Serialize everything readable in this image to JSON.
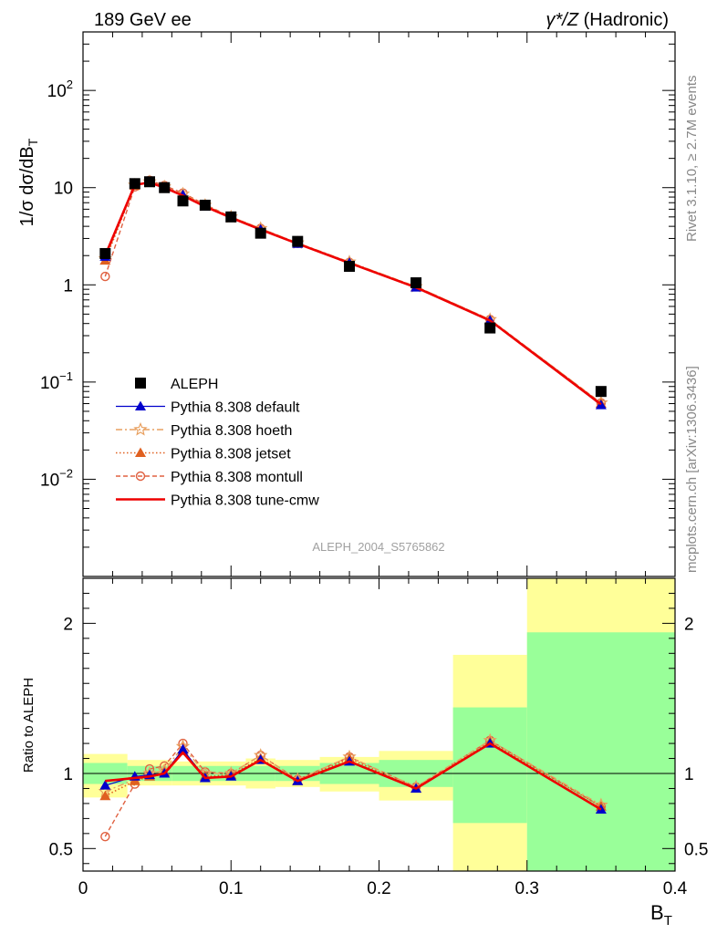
{
  "header": {
    "left": "189 GeV ee",
    "right_main": "γ*/Z",
    "right_paren": "(Hadronic)"
  },
  "side_labels": {
    "rivet": "Rivet 3.1.10, ≥ 2.7M events",
    "mcplots": "mcplots.cern.ch [arXiv:1306.3436]"
  },
  "watermark": "ALEPH_2004_S5765862",
  "colors": {
    "data": "#000000",
    "default": "#0000cc",
    "hoeth": "#e8a060",
    "jetset": "#e06020",
    "montull": "#e06040",
    "tunecmw": "#ee0000",
    "band_inner": "#99ff99",
    "band_outer": "#ffff99"
  },
  "chart_data": [
    {
      "type": "scatter",
      "panel": "main",
      "title": "",
      "xlabel": "B_T",
      "ylabel": "1/σ dσ/dB_T",
      "ylabel_parts": {
        "prefix": "1/σ  dσ/dB",
        "sub": "T"
      },
      "xlim": [
        0,
        0.4
      ],
      "ylim": [
        0.001,
        400
      ],
      "yscale": "log",
      "ytick_labels": [
        {
          "value": 0.01,
          "base": "10",
          "exp": "−2"
        },
        {
          "value": 0.1,
          "base": "10",
          "exp": "−1"
        },
        {
          "value": 1,
          "base": "1",
          "exp": ""
        },
        {
          "value": 10,
          "base": "10",
          "exp": ""
        },
        {
          "value": 100,
          "base": "10",
          "exp": "2"
        }
      ],
      "legend_position": "bottom-left",
      "x": [
        0.015,
        0.035,
        0.045,
        0.055,
        0.0675,
        0.0825,
        0.1,
        0.12,
        0.145,
        0.18,
        0.225,
        0.275,
        0.35
      ],
      "series": [
        {
          "name": "ALEPH",
          "key": "data",
          "style": "data",
          "values": [
            2.1,
            11.0,
            11.5,
            10.0,
            7.3,
            6.6,
            5.0,
            3.4,
            2.8,
            1.55,
            1.05,
            0.36,
            0.08
          ]
        },
        {
          "name": "Pythia 8.308 default",
          "key": "default",
          "style": "default",
          "values": [
            1.95,
            10.8,
            11.4,
            10.1,
            8.4,
            6.4,
            4.9,
            3.7,
            2.65,
            1.68,
            0.94,
            0.43,
            0.058
          ]
        },
        {
          "name": "Pythia 8.308 hoeth",
          "key": "hoeth",
          "style": "hoeth",
          "values": [
            1.85,
            10.6,
            11.5,
            10.2,
            8.6,
            6.6,
            5.0,
            3.8,
            2.7,
            1.72,
            0.96,
            0.44,
            0.061
          ]
        },
        {
          "name": "Pythia 8.308 jetset",
          "key": "jetset",
          "style": "jetset",
          "values": [
            1.78,
            10.5,
            11.3,
            10.1,
            8.4,
            6.5,
            4.95,
            3.75,
            2.66,
            1.7,
            0.95,
            0.435,
            0.06
          ]
        },
        {
          "name": "Pythia 8.308 montull",
          "key": "montull",
          "style": "montull",
          "values": [
            1.22,
            10.2,
            11.9,
            10.5,
            8.8,
            6.7,
            5.0,
            3.8,
            2.68,
            1.7,
            0.96,
            0.44,
            0.061
          ]
        },
        {
          "name": "Pythia 8.308 tune-cmw",
          "key": "tunecmw",
          "style": "tunecmw",
          "values": [
            2.0,
            10.7,
            11.3,
            10.0,
            8.3,
            6.4,
            4.9,
            3.7,
            2.65,
            1.68,
            0.94,
            0.43,
            0.059
          ]
        }
      ]
    },
    {
      "type": "line",
      "panel": "ratio",
      "title": "",
      "xlabel": "B_T",
      "xlabel_parts": {
        "prefix": "B",
        "sub": "T"
      },
      "ylabel": "Ratio to ALEPH",
      "xlim": [
        0,
        0.4
      ],
      "ylim": [
        0.35,
        2.3
      ],
      "xticks": [
        0,
        0.1,
        0.2,
        0.3,
        0.4
      ],
      "xtick_labels": [
        "0",
        "0.1",
        "0.2",
        "0.3",
        "0.4"
      ],
      "yticks": [
        0.5,
        1,
        2
      ],
      "ytick_labels": [
        "0.5",
        "1",
        "2"
      ],
      "reference_line": 1,
      "bins": [
        {
          "lo": 0.0,
          "hi": 0.03,
          "inner": [
            0.93,
            1.07
          ],
          "outer": [
            0.84,
            1.13
          ]
        },
        {
          "lo": 0.03,
          "hi": 0.06,
          "inner": [
            0.95,
            1.05
          ],
          "outer": [
            0.92,
            1.09
          ]
        },
        {
          "lo": 0.06,
          "hi": 0.09,
          "inner": [
            0.95,
            1.05
          ],
          "outer": [
            0.92,
            1.08
          ]
        },
        {
          "lo": 0.09,
          "hi": 0.11,
          "inner": [
            0.95,
            1.05
          ],
          "outer": [
            0.92,
            1.08
          ]
        },
        {
          "lo": 0.11,
          "hi": 0.13,
          "inner": [
            0.95,
            1.05
          ],
          "outer": [
            0.9,
            1.1
          ]
        },
        {
          "lo": 0.13,
          "hi": 0.16,
          "inner": [
            0.95,
            1.05
          ],
          "outer": [
            0.91,
            1.09
          ]
        },
        {
          "lo": 0.16,
          "hi": 0.2,
          "inner": [
            0.93,
            1.07
          ],
          "outer": [
            0.88,
            1.11
          ]
        },
        {
          "lo": 0.2,
          "hi": 0.25,
          "inner": [
            0.91,
            1.09
          ],
          "outer": [
            0.82,
            1.15
          ]
        },
        {
          "lo": 0.25,
          "hi": 0.3,
          "inner": [
            0.67,
            1.44
          ],
          "outer": [
            0.35,
            1.79
          ]
        },
        {
          "lo": 0.3,
          "hi": 0.4,
          "inner": [
            0.35,
            1.94
          ],
          "outer": [
            0.35,
            2.3
          ]
        }
      ],
      "x": [
        0.015,
        0.035,
        0.045,
        0.055,
        0.0675,
        0.0825,
        0.1,
        0.12,
        0.145,
        0.18,
        0.225,
        0.275,
        0.35
      ],
      "series": [
        {
          "name": "Pythia 8.308 default",
          "key": "default",
          "style": "default",
          "values": [
            0.92,
            0.98,
            0.99,
            1.0,
            1.16,
            0.97,
            0.98,
            1.09,
            0.95,
            1.08,
            0.9,
            1.2,
            0.76
          ]
        },
        {
          "name": "Pythia 8.308 hoeth",
          "key": "hoeth",
          "style": "hoeth",
          "values": [
            0.88,
            0.96,
            1.0,
            1.02,
            1.18,
            1.0,
            1.0,
            1.12,
            0.96,
            1.11,
            0.91,
            1.22,
            0.79
          ]
        },
        {
          "name": "Pythia 8.308 jetset",
          "key": "jetset",
          "style": "jetset",
          "values": [
            0.85,
            0.95,
            0.98,
            1.01,
            1.15,
            0.98,
            0.99,
            1.1,
            0.95,
            1.1,
            0.9,
            1.21,
            0.78
          ]
        },
        {
          "name": "Pythia 8.308 montull",
          "key": "montull",
          "style": "montull",
          "values": [
            0.58,
            0.93,
            1.03,
            1.05,
            1.2,
            1.01,
            1.0,
            1.12,
            0.96,
            1.11,
            0.91,
            1.22,
            0.78
          ]
        },
        {
          "name": "Pythia 8.308 tune-cmw",
          "key": "tunecmw",
          "style": "tunecmw",
          "values": [
            0.95,
            0.97,
            0.98,
            1.0,
            1.14,
            0.97,
            0.98,
            1.09,
            0.95,
            1.08,
            0.9,
            1.2,
            0.76
          ]
        }
      ]
    }
  ]
}
